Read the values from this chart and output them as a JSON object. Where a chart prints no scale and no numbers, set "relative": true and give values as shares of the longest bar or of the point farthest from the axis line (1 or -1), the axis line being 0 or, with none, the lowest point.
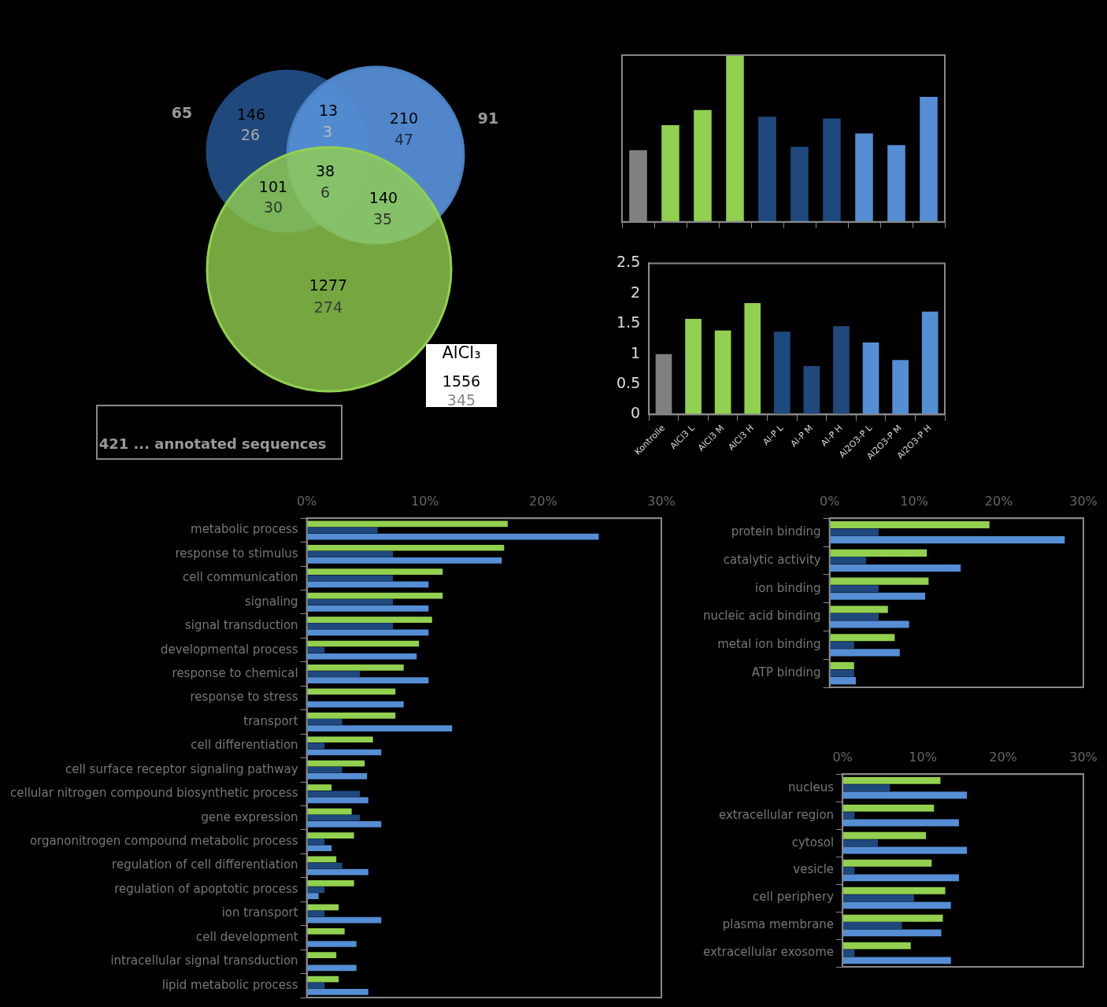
{
  "chart_data": [
    {
      "type": "other",
      "annotations": [
        "65",
        "146",
        "26",
        "13",
        "3",
        "210",
        "47",
        "91",
        "101",
        "30",
        "38",
        "6",
        "140",
        "35",
        "1277",
        "274",
        "AlCl₃",
        "1556",
        "345",
        "421   ... annotated sequences"
      ]
    },
    {
      "type": "bar",
      "relative": true,
      "categories": [
        null,
        null,
        null,
        null,
        null,
        null,
        null,
        null,
        null,
        null
      ],
      "values": [
        0.43,
        0.58,
        0.67,
        1,
        0.63,
        0.45,
        0.62,
        0.53,
        0.46,
        0.75
      ],
      "colors": [
        "#808080",
        "#92d050",
        "#92d050",
        "#92d050",
        "#1f497d",
        "#1f497d",
        "#1f497d",
        "#558ed5",
        "#558ed5",
        "#558ed5"
      ]
    },
    {
      "type": "bar",
      "categories": [
        "Kontrolle",
        "AlCl3 L",
        "AlCl3 M",
        "AlCl3 H",
        "Al-P L",
        "Al-P M",
        "Al-P H",
        "Al2O3-P L",
        "Al2O3-P M",
        "Al2O3-P H"
      ],
      "values": [
        1.0,
        1.58,
        1.39,
        1.84,
        1.37,
        0.8,
        1.46,
        1.19,
        0.9,
        1.7
      ],
      "colors": [
        "#808080",
        "#92d050",
        "#92d050",
        "#92d050",
        "#1f497d",
        "#1f497d",
        "#1f497d",
        "#558ed5",
        "#558ed5",
        "#558ed5"
      ],
      "ylim": [
        0,
        2.5
      ],
      "yticks": [
        0,
        0.5,
        1,
        1.5,
        2,
        2.5
      ]
    },
    {
      "type": "bar",
      "orientation": "horizontal",
      "categories": [
        "metabolic process",
        "response to stimulus",
        "cell communication",
        "signaling",
        "signal transduction",
        "developmental process",
        "response to chemical",
        "response to stress",
        "transport",
        "cell differentiation",
        "cell surface receptor signaling pathway",
        "cellular nitrogen compound biosynthetic process",
        "gene expression",
        "organonitrogen compound metabolic process",
        "regulation of cell differentiation",
        "regulation of apoptotic process",
        "ion transport",
        "cell development",
        "intracellular signal transduction",
        "lipid metabolic process"
      ],
      "series": [
        {
          "color": "#92d050",
          "values": [
            17.0,
            16.7,
            11.5,
            11.5,
            10.6,
            9.5,
            8.2,
            7.5,
            7.5,
            5.6,
            4.9,
            2.1,
            3.8,
            4.0,
            2.5,
            4.0,
            2.7,
            3.2,
            2.5,
            2.7
          ]
        },
        {
          "color": "#1f497d",
          "values": [
            6.0,
            7.3,
            7.3,
            7.3,
            7.3,
            1.5,
            4.5,
            0,
            3.0,
            1.5,
            3.0,
            4.5,
            4.5,
            1.5,
            3.0,
            1.5,
            1.5,
            0,
            0,
            1.5
          ]
        },
        {
          "color": "#558ed5",
          "values": [
            24.7,
            16.5,
            10.3,
            10.3,
            10.3,
            9.3,
            10.3,
            8.2,
            12.3,
            6.3,
            5.1,
            5.2,
            6.3,
            2.1,
            5.2,
            1.0,
            6.3,
            4.2,
            4.2,
            5.2
          ]
        }
      ],
      "xlim": [
        0,
        30
      ],
      "xticks": [
        {
          "value": 0,
          "label": "0%"
        },
        {
          "value": 10,
          "label": "10%"
        },
        {
          "value": 20,
          "label": "20%"
        },
        {
          "value": 30,
          "label": "30%"
        }
      ]
    },
    {
      "type": "bar",
      "orientation": "horizontal",
      "categories": [
        "protein binding",
        "catalytic activity",
        "ion binding",
        "nucleic acid binding",
        "metal ion binding",
        "ATP binding"
      ],
      "series": [
        {
          "color": "#92d050",
          "values": [
            18.9,
            11.5,
            11.7,
            6.9,
            7.7,
            2.9
          ]
        },
        {
          "color": "#1f497d",
          "values": [
            5.8,
            4.3,
            5.8,
            5.8,
            2.9,
            2.9
          ]
        },
        {
          "color": "#558ed5",
          "values": [
            27.8,
            15.5,
            11.3,
            9.4,
            8.3,
            3.1
          ]
        }
      ],
      "xlim": [
        0,
        30
      ],
      "xticks": [
        {
          "value": 0,
          "label": "0%"
        },
        {
          "value": 10,
          "label": "10%"
        },
        {
          "value": 20,
          "label": "20%"
        },
        {
          "value": 30,
          "label": "30%"
        }
      ]
    },
    {
      "type": "bar",
      "orientation": "horizontal",
      "categories": [
        "nucleus",
        "extracellular region",
        "cytosol",
        "vesicle",
        "cell periphery",
        "plasma membrane",
        "extracellular exosome"
      ],
      "series": [
        {
          "color": "#92d050",
          "values": [
            12.2,
            11.4,
            10.4,
            11.1,
            12.8,
            12.5,
            8.5
          ]
        },
        {
          "color": "#1f497d",
          "values": [
            5.9,
            1.5,
            4.4,
            1.5,
            8.9,
            7.4,
            1.5
          ]
        },
        {
          "color": "#558ed5",
          "values": [
            15.5,
            14.5,
            15.5,
            14.5,
            13.5,
            12.3,
            13.5
          ]
        }
      ],
      "xlim": [
        0,
        30
      ],
      "xticks": [
        {
          "value": 0,
          "label": "0%"
        },
        {
          "value": 10,
          "label": "10%"
        },
        {
          "value": 20,
          "label": "20%"
        },
        {
          "value": 30,
          "label": "30%"
        }
      ]
    }
  ]
}
